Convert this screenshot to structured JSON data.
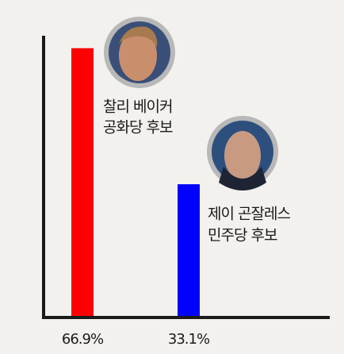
{
  "chart_data": {
    "type": "bar",
    "categories": [
      "찰리 베이커",
      "제이 곤잘레스"
    ],
    "roles": [
      "공화당 후보",
      "민주당 후보"
    ],
    "values": [
      66.9,
      33.1
    ],
    "value_labels": [
      "66.9%",
      "33.1%"
    ],
    "colors": [
      "#ff0000",
      "#0000ff"
    ],
    "ylim": [
      0,
      70
    ]
  }
}
